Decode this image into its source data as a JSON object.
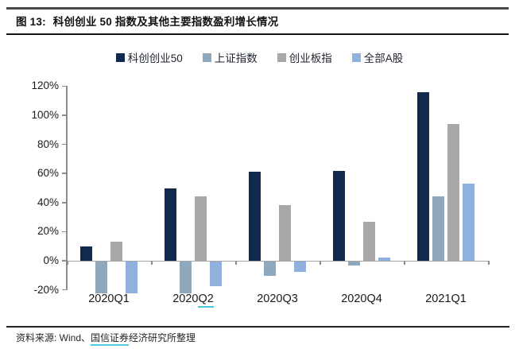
{
  "title": {
    "label": "图 13:",
    "text": "科创创业 50 指数及其他主要指数盈利增长情况"
  },
  "source": {
    "prefix": "资料来源: Wind、",
    "link_text": "国信证券",
    "suffix": "经济研究所整理"
  },
  "chart_data": {
    "type": "bar",
    "title": "科创创业50指数及其他主要指数盈利增长情况",
    "categories": [
      "2020Q1",
      "2020Q2",
      "2020Q3",
      "2020Q4",
      "2021Q1"
    ],
    "series": [
      {
        "name": "科创创业50",
        "color": "#12294E",
        "values": [
          10,
          50,
          61,
          62,
          116
        ]
      },
      {
        "name": "上证指数",
        "color": "#8FA8BC",
        "values": [
          -22,
          -22,
          -10,
          -3,
          44
        ]
      },
      {
        "name": "创业板指",
        "color": "#AAA7AA",
        "values": [
          13,
          44,
          38,
          27,
          94
        ]
      },
      {
        "name": "全部A股",
        "color": "#90B1DE",
        "values": [
          -22,
          -17,
          -7,
          2,
          53
        ]
      }
    ],
    "yticks": [
      120,
      100,
      80,
      60,
      40,
      20,
      0,
      -20
    ],
    "ytick_suffix": "%",
    "ylim": [
      -20,
      120
    ],
    "xlabel": "",
    "ylabel": "",
    "grid": false,
    "legend_position": "top",
    "category_underlines": {
      "2020Q2": "Q2"
    },
    "colors": {
      "axis": "#8c8c8c",
      "zero_line": "#a6a6a6",
      "underline_accent": "#49c7dd"
    }
  }
}
